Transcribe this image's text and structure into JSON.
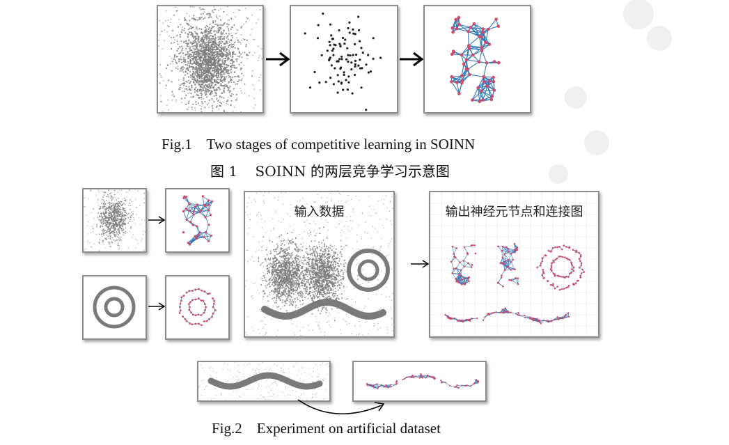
{
  "fig1": {
    "caption_en": "Fig.1    Two stages of competitive learning in SOINN",
    "caption_cn": "图 1    SOINN 的两层竞争学习示意图"
  },
  "fig2": {
    "input_title": "输入数据",
    "output_title": "输出神经元节点和连接图",
    "caption_en": "Fig.2    Experiment on artificial dataset"
  }
}
